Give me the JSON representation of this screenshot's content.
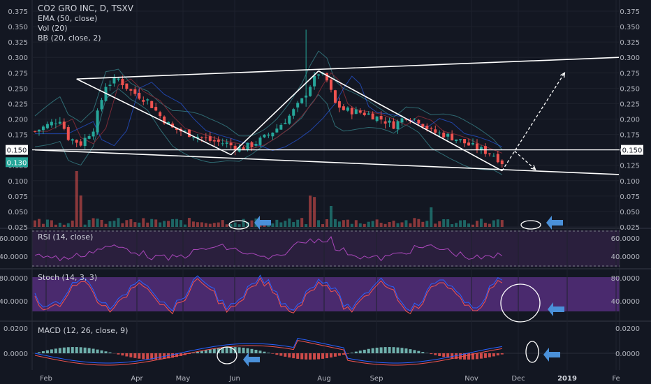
{
  "legend": {
    "title": "CO2 GRO INC, D, TSXV",
    "ema": "EMA (50, close)",
    "vol": "Vol (20)",
    "bb": "BB (20, close, 2)"
  },
  "panes": {
    "rsi": "RSI (14, close)",
    "stoch": "Stoch (14, 3, 3)",
    "macd": "MACD (12, 26, close, 9)"
  },
  "price_markers": {
    "line": "0.150",
    "last": "0.130"
  },
  "chart_data": {
    "type": "candlestick",
    "symbol": "CO2 GRO INC",
    "exchange": "TSXV",
    "interval": "D",
    "x_labels": [
      "Feb",
      "Apr",
      "May",
      "Jun",
      "Aug",
      "Sep",
      "Nov",
      "Dec",
      "2019",
      "Fe"
    ],
    "price_axis": {
      "ticks": [
        "0.375",
        "0.350",
        "0.325",
        "0.300",
        "0.275",
        "0.250",
        "0.225",
        "0.200",
        "0.175",
        "0.150",
        "0.125",
        "0.100",
        "0.075",
        "0.050",
        "0.025"
      ],
      "range": [
        0.025,
        0.385
      ],
      "horizontal_line": 0.15,
      "last_price": 0.13
    },
    "price_path": [
      [
        0,
        0.18
      ],
      [
        6,
        0.2
      ],
      [
        8,
        0.17
      ],
      [
        11,
        0.16
      ],
      [
        14,
        0.185
      ],
      [
        17,
        0.255
      ],
      [
        20,
        0.265
      ],
      [
        23,
        0.245
      ],
      [
        27,
        0.23
      ],
      [
        30,
        0.205
      ],
      [
        33,
        0.185
      ],
      [
        36,
        0.178
      ],
      [
        39,
        0.172
      ],
      [
        42,
        0.165
      ],
      [
        46,
        0.16
      ],
      [
        49,
        0.152
      ],
      [
        52,
        0.158
      ],
      [
        55,
        0.17
      ],
      [
        58,
        0.185
      ],
      [
        61,
        0.205
      ],
      [
        64,
        0.23
      ],
      [
        66,
        0.255
      ],
      [
        68,
        0.275
      ],
      [
        70,
        0.262
      ],
      [
        72,
        0.225
      ],
      [
        74,
        0.215
      ],
      [
        77,
        0.212
      ],
      [
        80,
        0.208
      ],
      [
        83,
        0.2
      ],
      [
        86,
        0.19
      ],
      [
        89,
        0.205
      ],
      [
        92,
        0.198
      ],
      [
        95,
        0.18
      ],
      [
        98,
        0.175
      ],
      [
        101,
        0.168
      ],
      [
        104,
        0.158
      ],
      [
        107,
        0.15
      ],
      [
        110,
        0.142
      ],
      [
        112,
        0.13
      ]
    ],
    "trendlines": [
      {
        "name": "upper-channel",
        "points": [
          [
            10,
            0.265
          ],
          [
            140,
            0.3
          ]
        ]
      },
      {
        "name": "lower-channel",
        "points": [
          [
            0,
            0.15
          ],
          [
            140,
            0.11
          ]
        ]
      },
      {
        "name": "drop-1",
        "points": [
          [
            10,
            0.265
          ],
          [
            47,
            0.142
          ]
        ]
      },
      {
        "name": "rise",
        "points": [
          [
            47,
            0.142
          ],
          [
            68,
            0.278
          ]
        ]
      },
      {
        "name": "drop-2",
        "points": [
          [
            68,
            0.278
          ],
          [
            112,
            0.116
          ]
        ]
      }
    ],
    "projections": [
      {
        "name": "up-arrow",
        "points": [
          [
            112,
            0.116
          ],
          [
            127,
            0.275
          ]
        ]
      },
      {
        "name": "down-arrow",
        "points": [
          [
            115,
            0.148
          ],
          [
            120,
            0.118
          ]
        ]
      }
    ],
    "rsi_axis": {
      "ticks": [
        "60.0000",
        "40.0000"
      ]
    },
    "stoch_axis": {
      "ticks": [
        "80.0000",
        "40.0000"
      ]
    },
    "macd_axis": {
      "ticks": [
        "0.0200",
        "0.0000"
      ]
    }
  }
}
